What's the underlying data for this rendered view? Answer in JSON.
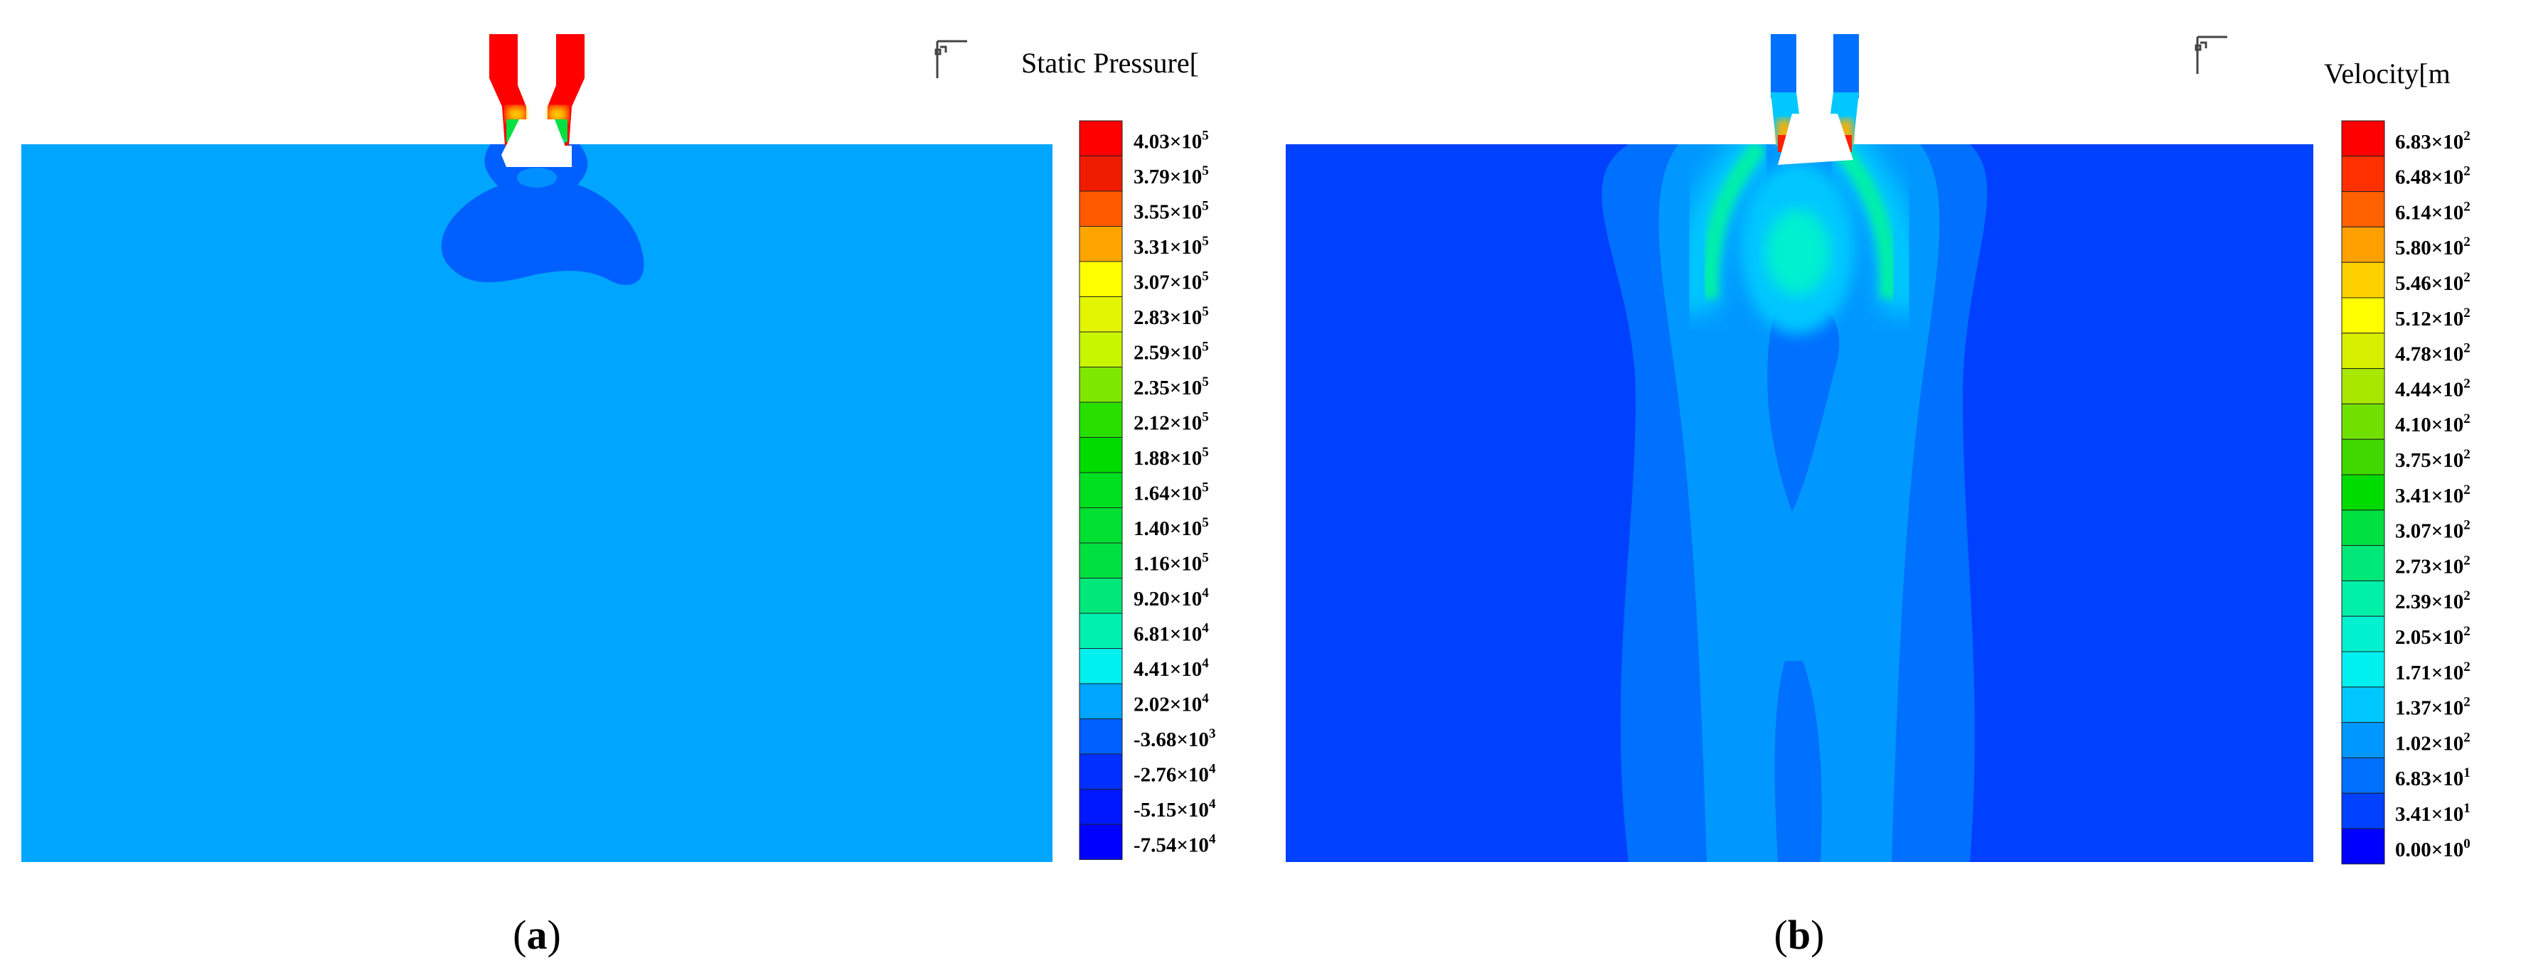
{
  "panels": [
    {
      "id": "a",
      "caption": "a",
      "legend_title": "Static Pressure[",
      "legend": [
        {
          "label": "4.03×10",
          "exp": "5",
          "color": "#ff0000"
        },
        {
          "label": "3.79×10",
          "exp": "5",
          "color": "#ef1c00"
        },
        {
          "label": "3.55×10",
          "exp": "5",
          "color": "#ff5a00"
        },
        {
          "label": "3.31×10",
          "exp": "5",
          "color": "#ffa500"
        },
        {
          "label": "3.07×10",
          "exp": "5",
          "color": "#ffff00"
        },
        {
          "label": "2.83×10",
          "exp": "5",
          "color": "#e4f500"
        },
        {
          "label": "2.59×10",
          "exp": "5",
          "color": "#c8f500"
        },
        {
          "label": "2.35×10",
          "exp": "5",
          "color": "#7fe800"
        },
        {
          "label": "2.12×10",
          "exp": "5",
          "color": "#28e000"
        },
        {
          "label": "1.88×10",
          "exp": "5",
          "color": "#00dc00"
        },
        {
          "label": "1.64×10",
          "exp": "5",
          "color": "#00e020"
        },
        {
          "label": "1.40×10",
          "exp": "5",
          "color": "#00e030"
        },
        {
          "label": "1.16×10",
          "exp": "5",
          "color": "#00e040"
        },
        {
          "label": "9.20×10",
          "exp": "4",
          "color": "#00e87a"
        },
        {
          "label": "6.81×10",
          "exp": "4",
          "color": "#00f0b0"
        },
        {
          "label": "4.41×10",
          "exp": "4",
          "color": "#00f0f0"
        },
        {
          "label": "2.02×10",
          "exp": "4",
          "color": "#00a5ff"
        },
        {
          "label": "-3.68×10",
          "exp": "3",
          "color": "#0060ff"
        },
        {
          "label": "-2.76×10",
          "exp": "4",
          "color": "#0030ff"
        },
        {
          "label": "-5.15×10",
          "exp": "4",
          "color": "#0018ff"
        },
        {
          "label": "-7.54×10",
          "exp": "4",
          "color": "#0000ff"
        }
      ]
    },
    {
      "id": "b",
      "caption": "b",
      "legend_title": "Velocity[m",
      "legend": [
        {
          "label": "6.83×10",
          "exp": "2",
          "color": "#ff0000"
        },
        {
          "label": "6.48×10",
          "exp": "2",
          "color": "#ff3000"
        },
        {
          "label": "6.14×10",
          "exp": "2",
          "color": "#ff6000"
        },
        {
          "label": "5.80×10",
          "exp": "2",
          "color": "#ffa000"
        },
        {
          "label": "5.46×10",
          "exp": "2",
          "color": "#ffd000"
        },
        {
          "label": "5.12×10",
          "exp": "2",
          "color": "#ffff00"
        },
        {
          "label": "4.78×10",
          "exp": "2",
          "color": "#d8f000"
        },
        {
          "label": "4.44×10",
          "exp": "2",
          "color": "#a8e800"
        },
        {
          "label": "4.10×10",
          "exp": "2",
          "color": "#70e000"
        },
        {
          "label": "3.75×10",
          "exp": "2",
          "color": "#40d800"
        },
        {
          "label": "3.41×10",
          "exp": "2",
          "color": "#00dc00"
        },
        {
          "label": "3.07×10",
          "exp": "2",
          "color": "#00e040"
        },
        {
          "label": "2.73×10",
          "exp": "2",
          "color": "#00e878"
        },
        {
          "label": "2.39×10",
          "exp": "2",
          "color": "#00f0a8"
        },
        {
          "label": "2.05×10",
          "exp": "2",
          "color": "#00f0d0"
        },
        {
          "label": "1.71×10",
          "exp": "2",
          "color": "#00f0f0"
        },
        {
          "label": "1.37×10",
          "exp": "2",
          "color": "#00c8ff"
        },
        {
          "label": "1.02×10",
          "exp": "2",
          "color": "#0098ff"
        },
        {
          "label": "6.83×10",
          "exp": "1",
          "color": "#0070ff"
        },
        {
          "label": "3.41×10",
          "exp": "1",
          "color": "#0040ff"
        },
        {
          "label": "0.00×10",
          "exp": "0",
          "color": "#0000ff"
        }
      ]
    }
  ]
}
